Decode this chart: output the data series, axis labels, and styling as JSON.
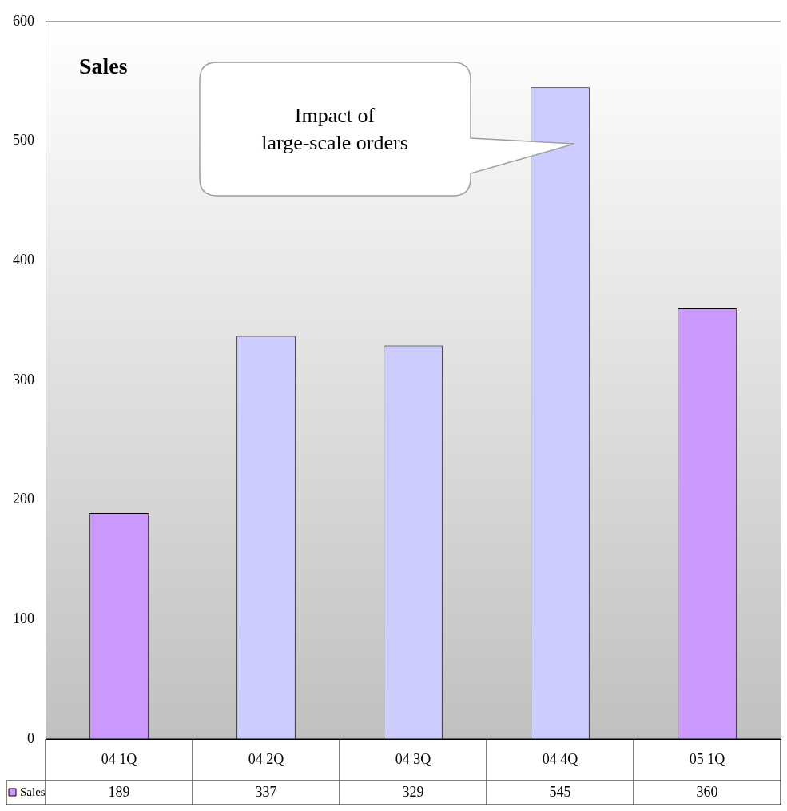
{
  "chart_data": {
    "type": "bar",
    "title": "Sales",
    "categories": [
      "04 1Q",
      "04 2Q",
      "04 3Q",
      "04 4Q",
      "05 1Q"
    ],
    "series": [
      {
        "name": "Sales",
        "color": "#cc99ff",
        "colors": [
          "#cc99ff",
          "#ccccff",
          "#ccccff",
          "#ccccff",
          "#cc99ff"
        ],
        "values": [
          189,
          337,
          329,
          545,
          360
        ]
      }
    ],
    "ylim": [
      0,
      600
    ],
    "yticks": [
      0,
      100,
      200,
      300,
      400,
      500,
      600
    ],
    "grid": false,
    "legend": "bottom",
    "data_labels": true,
    "annotations": [
      "Impact of\nlarge-scale orders"
    ]
  }
}
